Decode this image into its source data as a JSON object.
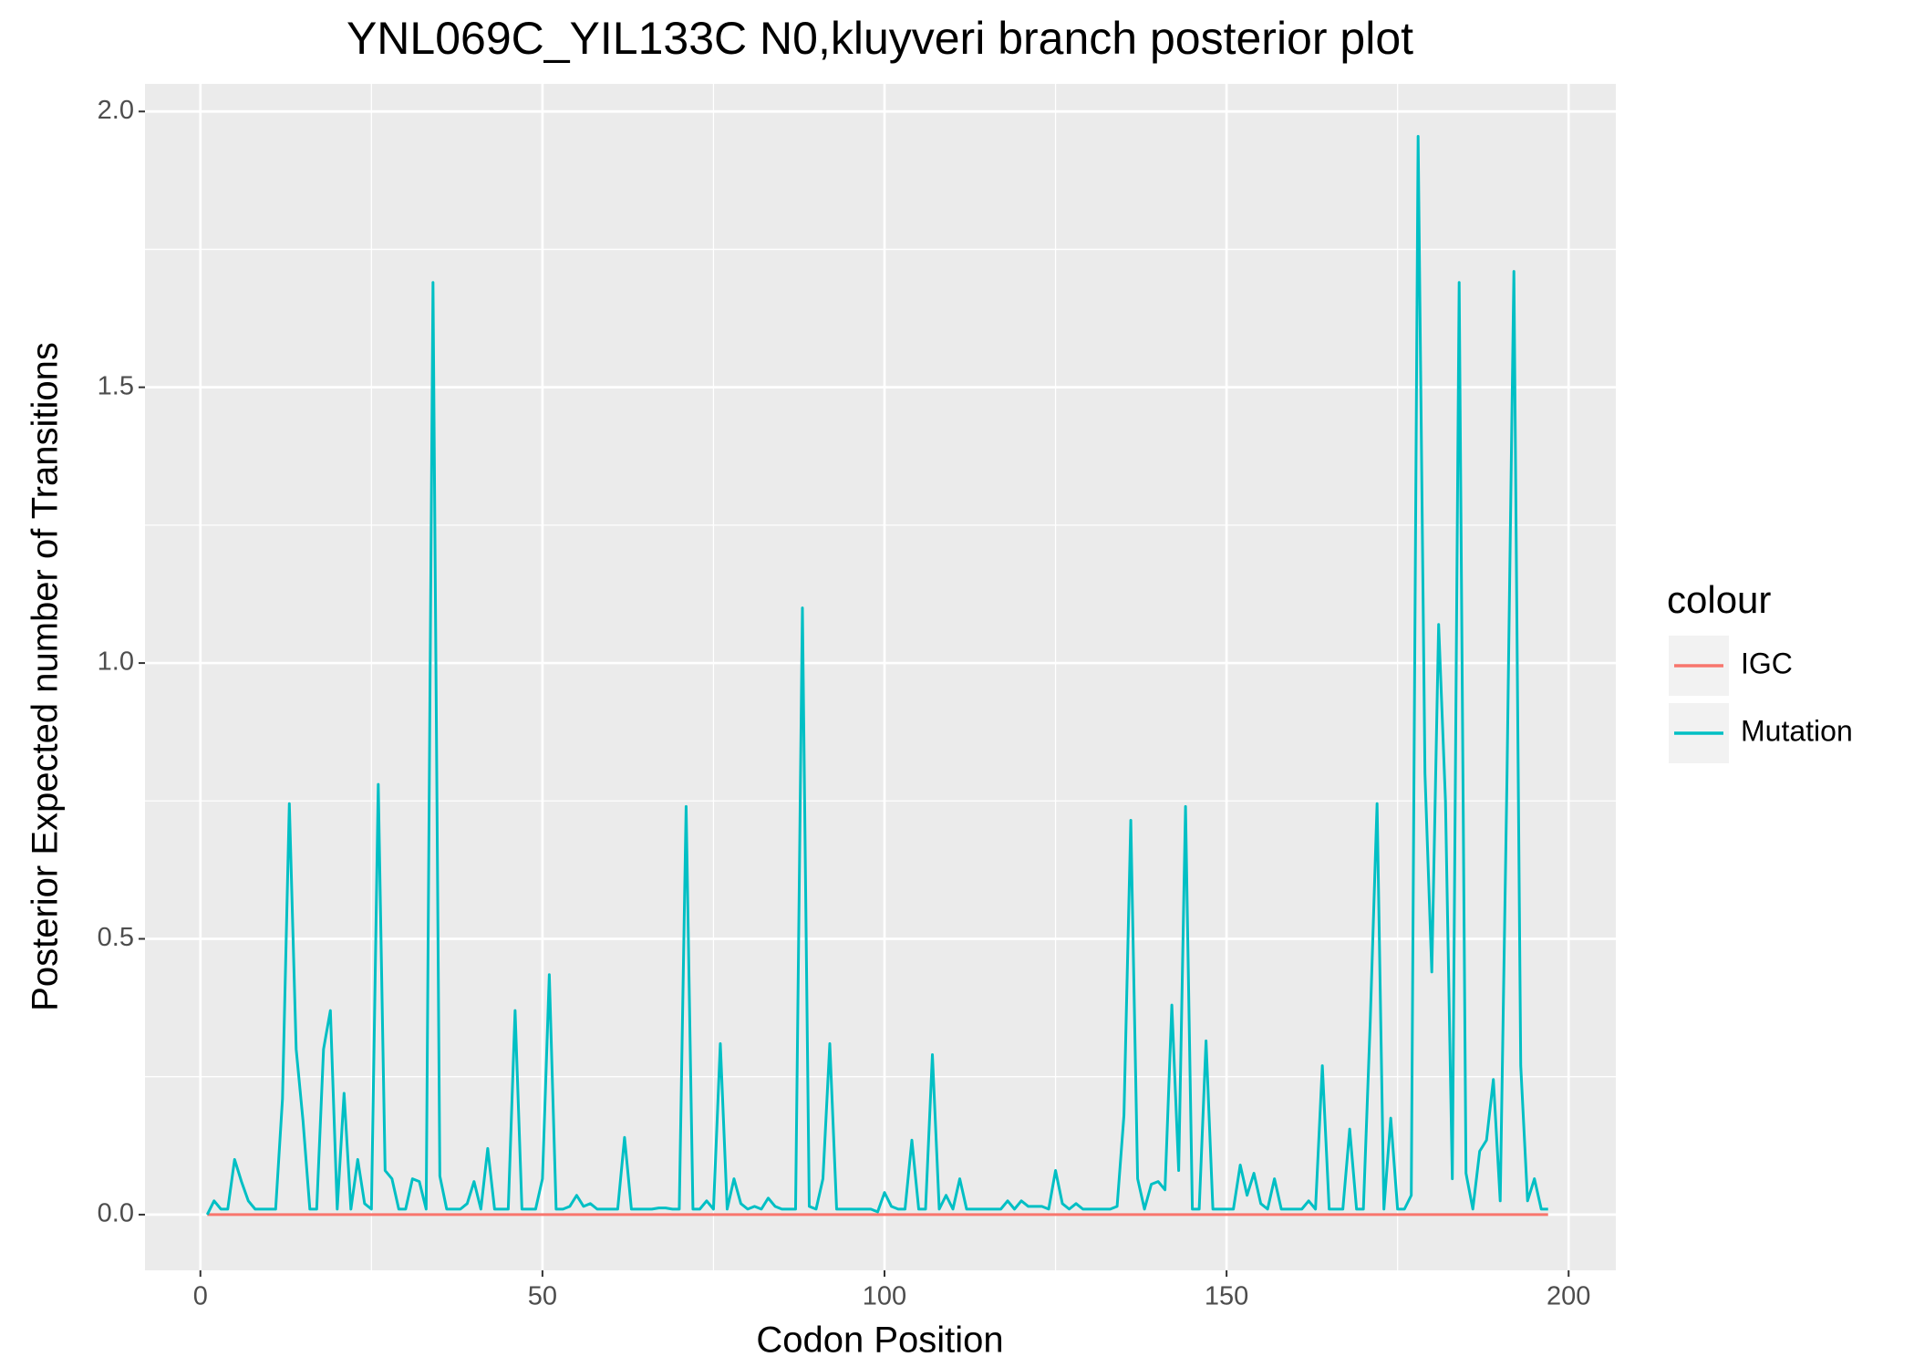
{
  "chart_data": {
    "type": "line",
    "title": "YNL069C_YIL133C N0,kluyveri branch posterior plot",
    "x_label": "Codon Position",
    "y_label": "Posterior Expected number of Transitions",
    "legend_title": "colour",
    "legend_position": "right",
    "grid": true,
    "panel_color": "#ebebeb",
    "x": [
      1,
      2,
      3,
      4,
      5,
      6,
      7,
      8,
      9,
      10,
      11,
      12,
      13,
      14,
      15,
      16,
      17,
      18,
      19,
      20,
      21,
      22,
      23,
      24,
      25,
      26,
      27,
      28,
      29,
      30,
      31,
      32,
      33,
      34,
      35,
      36,
      37,
      38,
      39,
      40,
      41,
      42,
      43,
      44,
      45,
      46,
      47,
      48,
      49,
      50,
      51,
      52,
      53,
      54,
      55,
      56,
      57,
      58,
      59,
      60,
      61,
      62,
      63,
      64,
      65,
      66,
      67,
      68,
      69,
      70,
      71,
      72,
      73,
      74,
      75,
      76,
      77,
      78,
      79,
      80,
      81,
      82,
      83,
      84,
      85,
      86,
      87,
      88,
      89,
      90,
      91,
      92,
      93,
      94,
      95,
      96,
      97,
      98,
      99,
      100,
      101,
      102,
      103,
      104,
      105,
      106,
      107,
      108,
      109,
      110,
      111,
      112,
      113,
      114,
      115,
      116,
      117,
      118,
      119,
      120,
      121,
      122,
      123,
      124,
      125,
      126,
      127,
      128,
      129,
      130,
      131,
      132,
      133,
      134,
      135,
      136,
      137,
      138,
      139,
      140,
      141,
      142,
      143,
      144,
      145,
      146,
      147,
      148,
      149,
      150,
      151,
      152,
      153,
      154,
      155,
      156,
      157,
      158,
      159,
      160,
      161,
      162,
      163,
      164,
      165,
      166,
      167,
      168,
      169,
      170,
      171,
      172,
      173,
      174,
      175,
      176,
      177,
      178,
      179,
      180,
      181,
      182,
      183,
      184,
      185,
      186,
      187,
      188,
      189,
      190,
      191,
      192,
      193,
      194,
      195,
      196,
      197
    ],
    "series": [
      {
        "name": "IGC",
        "color": "#f8766d",
        "values": [
          0,
          0,
          0,
          0,
          0,
          0,
          0,
          0,
          0,
          0,
          0,
          0,
          0,
          0,
          0,
          0,
          0,
          0,
          0,
          0,
          0,
          0,
          0,
          0,
          0,
          0,
          0,
          0,
          0,
          0,
          0,
          0,
          0,
          0,
          0,
          0,
          0,
          0,
          0,
          0,
          0,
          0,
          0,
          0,
          0,
          0,
          0,
          0,
          0,
          0,
          0,
          0,
          0,
          0,
          0,
          0,
          0,
          0,
          0,
          0,
          0,
          0,
          0,
          0,
          0,
          0,
          0,
          0,
          0,
          0,
          0,
          0,
          0,
          0,
          0,
          0,
          0,
          0,
          0,
          0,
          0,
          0,
          0,
          0,
          0,
          0,
          0,
          0,
          0,
          0,
          0,
          0,
          0,
          0,
          0,
          0,
          0,
          0,
          0,
          0,
          0,
          0,
          0,
          0,
          0,
          0,
          0,
          0,
          0,
          0,
          0,
          0,
          0,
          0,
          0,
          0,
          0,
          0,
          0,
          0,
          0,
          0,
          0,
          0,
          0,
          0,
          0,
          0,
          0,
          0,
          0,
          0,
          0,
          0,
          0,
          0,
          0,
          0,
          0,
          0,
          0,
          0,
          0,
          0,
          0,
          0,
          0,
          0,
          0,
          0,
          0,
          0,
          0,
          0,
          0,
          0,
          0,
          0,
          0,
          0,
          0,
          0,
          0,
          0,
          0,
          0,
          0,
          0,
          0,
          0,
          0,
          0,
          0,
          0,
          0,
          0,
          0,
          0,
          0,
          0,
          0,
          0,
          0,
          0,
          0,
          0,
          0,
          0,
          0,
          0,
          0,
          0,
          0,
          0,
          0,
          0,
          0
        ]
      },
      {
        "name": "Mutation",
        "color": "#00bfc4",
        "values": [
          0.0,
          0.025,
          0.01,
          0.01,
          0.1,
          0.06,
          0.025,
          0.01,
          0.01,
          0.01,
          0.01,
          0.21,
          0.745,
          0.3,
          0.17,
          0.01,
          0.01,
          0.3,
          0.37,
          0.01,
          0.22,
          0.01,
          0.1,
          0.02,
          0.01,
          0.78,
          0.08,
          0.065,
          0.01,
          0.01,
          0.065,
          0.06,
          0.01,
          1.69,
          0.07,
          0.01,
          0.01,
          0.01,
          0.02,
          0.06,
          0.01,
          0.12,
          0.01,
          0.01,
          0.01,
          0.37,
          0.01,
          0.01,
          0.01,
          0.065,
          0.435,
          0.01,
          0.01,
          0.015,
          0.035,
          0.015,
          0.02,
          0.01,
          0.01,
          0.01,
          0.01,
          0.14,
          0.01,
          0.01,
          0.01,
          0.01,
          0.012,
          0.012,
          0.01,
          0.01,
          0.74,
          0.01,
          0.01,
          0.025,
          0.01,
          0.31,
          0.01,
          0.065,
          0.02,
          0.01,
          0.015,
          0.01,
          0.03,
          0.015,
          0.01,
          0.01,
          0.01,
          1.1,
          0.015,
          0.01,
          0.065,
          0.31,
          0.01,
          0.01,
          0.01,
          0.01,
          0.01,
          0.01,
          0.005,
          0.04,
          0.015,
          0.01,
          0.01,
          0.135,
          0.01,
          0.01,
          0.29,
          0.01,
          0.035,
          0.01,
          0.065,
          0.01,
          0.01,
          0.01,
          0.01,
          0.01,
          0.01,
          0.025,
          0.01,
          0.025,
          0.015,
          0.015,
          0.015,
          0.01,
          0.08,
          0.02,
          0.01,
          0.02,
          0.01,
          0.01,
          0.01,
          0.01,
          0.01,
          0.015,
          0.18,
          0.715,
          0.065,
          0.01,
          0.055,
          0.06,
          0.045,
          0.38,
          0.08,
          0.74,
          0.01,
          0.01,
          0.315,
          0.01,
          0.01,
          0.01,
          0.01,
          0.09,
          0.035,
          0.075,
          0.02,
          0.01,
          0.065,
          0.01,
          0.01,
          0.01,
          0.01,
          0.025,
          0.01,
          0.27,
          0.01,
          0.01,
          0.01,
          0.155,
          0.01,
          0.01,
          0.35,
          0.745,
          0.01,
          0.175,
          0.01,
          0.01,
          0.035,
          1.955,
          0.8,
          0.44,
          1.07,
          0.75,
          0.065,
          1.69,
          0.075,
          0.01,
          0.115,
          0.135,
          0.245,
          0.025,
          0.8,
          1.71,
          0.27,
          0.025,
          0.065,
          0.01,
          0.01
        ]
      }
    ],
    "xlim": [
      -8.1,
      206.9
    ],
    "ylim": [
      -0.101,
      2.05
    ],
    "xticks": [
      0,
      50,
      100,
      150,
      200
    ],
    "yticks": [
      {
        "value": 0,
        "label": "0.0"
      },
      {
        "value": 0.5,
        "label": "0.5"
      },
      {
        "value": 1,
        "label": "1.0"
      },
      {
        "value": 1.5,
        "label": "1.5"
      },
      {
        "value": 2,
        "label": "2.0"
      }
    ],
    "xminor": [
      25,
      75,
      125,
      175
    ],
    "yminor": [
      0.25,
      0.75,
      1.25,
      1.75
    ]
  }
}
